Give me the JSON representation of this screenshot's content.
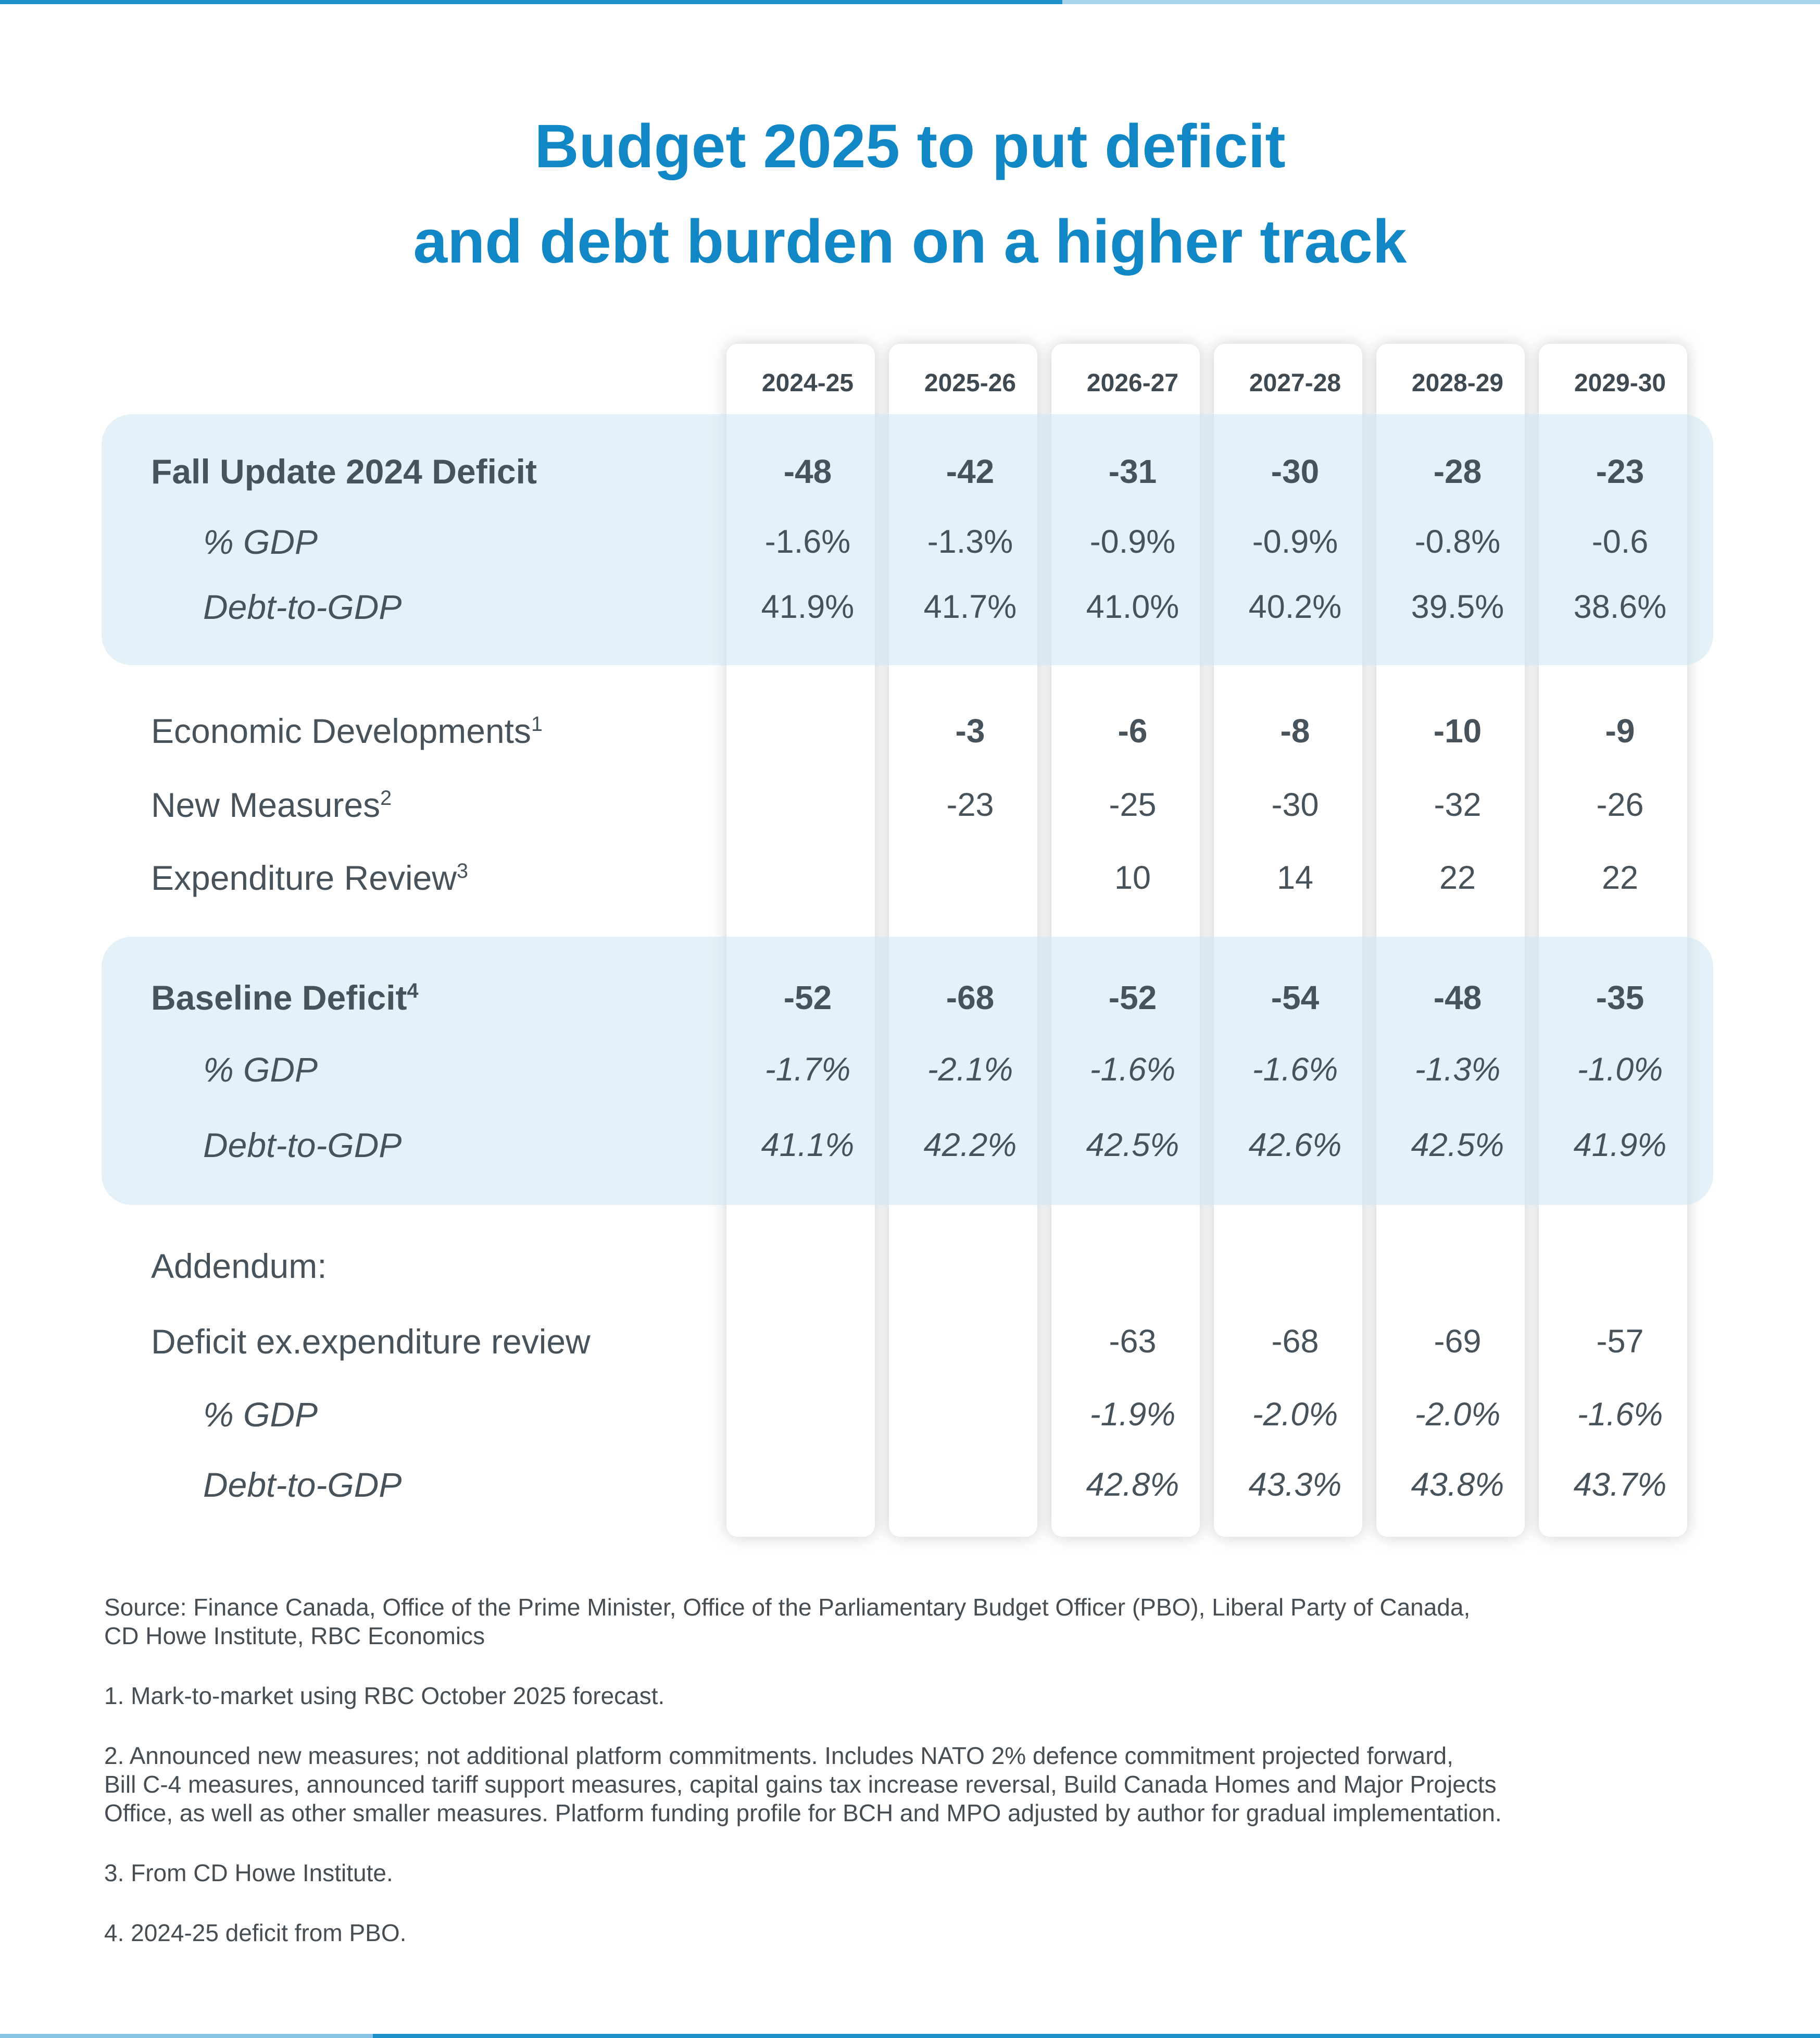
{
  "accent": {
    "title_blue": "#1287c6",
    "bar_dark_blue": "#1d8fc9",
    "bar_light_blue_top": "#a9d6ee",
    "bar_light_blue_bottom": "#86c5e6",
    "band_light_blue": "#e2f1f8",
    "text_slate": "#47525a"
  },
  "title": {
    "line1": "Budget 2025 to put deficit",
    "line2": "and debt burden on a higher track"
  },
  "table": {
    "col_headers": [
      "2024-25",
      "2025-26",
      "2026-27",
      "2027-28",
      "2028-29",
      "2029-30"
    ],
    "rows": [
      {
        "label": "Fall Update 2024 Deficit",
        "sup": "",
        "label_style": "bold",
        "indent": false,
        "value_style": "bold",
        "values": [
          "-48",
          "-42",
          "-31",
          "-30",
          "-28",
          "-23"
        ]
      },
      {
        "label": "% GDP",
        "sup": "",
        "label_style": "italic",
        "indent": true,
        "value_style": "reg",
        "values": [
          "-1.6%",
          "-1.3%",
          "-0.9%",
          "-0.9%",
          "-0.8%",
          "-0.6"
        ]
      },
      {
        "label": "Debt-to-GDP",
        "sup": "",
        "label_style": "italic",
        "indent": true,
        "value_style": "reg",
        "values": [
          "41.9%",
          "41.7%",
          "41.0%",
          "40.2%",
          "39.5%",
          "38.6%"
        ]
      },
      {
        "label": "Economic Developments",
        "sup": "1",
        "label_style": "reg",
        "indent": false,
        "value_style": "bold",
        "values": [
          "",
          "-3",
          "-6",
          "-8",
          "-10",
          "-9"
        ]
      },
      {
        "label": "New Measures",
        "sup": "2",
        "label_style": "reg",
        "indent": false,
        "value_style": "reg",
        "values": [
          "",
          "-23",
          "-25",
          "-30",
          "-32",
          "-26"
        ]
      },
      {
        "label": "Expenditure Review",
        "sup": "3",
        "label_style": "reg",
        "indent": false,
        "value_style": "reg",
        "values": [
          "",
          "",
          "10",
          "14",
          "22",
          "22"
        ]
      },
      {
        "label": "Baseline Deficit",
        "sup": "4",
        "label_style": "bold",
        "indent": false,
        "value_style": "bold",
        "values": [
          "-52",
          "-68",
          "-52",
          "-54",
          "-48",
          "-35"
        ]
      },
      {
        "label": "% GDP",
        "sup": "",
        "label_style": "italic",
        "indent": true,
        "value_style": "italic",
        "values": [
          "-1.7%",
          "-2.1%",
          "-1.6%",
          "-1.6%",
          "-1.3%",
          "-1.0%"
        ]
      },
      {
        "label": "Debt-to-GDP",
        "sup": "",
        "label_style": "italic",
        "indent": true,
        "value_style": "italic",
        "values": [
          "41.1%",
          "42.2%",
          "42.5%",
          "42.6%",
          "42.5%",
          "41.9%"
        ]
      },
      {
        "label": "Addendum:",
        "sup": "",
        "label_style": "reg",
        "indent": false,
        "value_style": "reg",
        "values": [
          "",
          "",
          "",
          "",
          "",
          ""
        ]
      },
      {
        "label": "Deficit ex.expenditure review",
        "sup": "",
        "label_style": "reg",
        "indent": false,
        "value_style": "reg",
        "values": [
          "",
          "",
          "-63",
          "-68",
          "-69",
          "-57"
        ]
      },
      {
        "label": "% GDP",
        "sup": "",
        "label_style": "italic",
        "indent": true,
        "value_style": "italic",
        "values": [
          "",
          "",
          "-1.9%",
          "-2.0%",
          "-2.0%",
          "-1.6%"
        ]
      },
      {
        "label": "Debt-to-GDP",
        "sup": "",
        "label_style": "italic",
        "indent": true,
        "value_style": "italic",
        "values": [
          "",
          "",
          "42.8%",
          "43.3%",
          "43.8%",
          "43.7%"
        ]
      }
    ]
  },
  "footnotes": {
    "paragraphs": [
      {
        "lines": [
          "Source: Finance Canada, Office of the Prime Minister, Office of the Parliamentary Budget Officer (PBO), Liberal Party of Canada,",
          "CD Howe Institute, RBC Economics"
        ]
      },
      {
        "lines": [
          "1. Mark-to-market using RBC October 2025 forecast."
        ]
      },
      {
        "lines": [
          "2. Announced new measures; not additional platform commitments. Includes NATO 2% defence commitment projected forward,",
          "Bill C-4 measures, announced tariff support measures, capital gains tax increase reversal, Build Canada Homes and Major Projects",
          "Office, as well as other smaller measures. Platform funding profile for BCH and MPO adjusted by  author for gradual implementation."
        ]
      },
      {
        "lines": [
          "3. From CD Howe Institute."
        ]
      },
      {
        "lines": [
          "4. 2024-25 deficit from PBO."
        ]
      }
    ]
  },
  "chart_data": {
    "type": "table",
    "title": "Budget 2025 to put deficit and debt burden on a higher track",
    "columns": [
      "2024-25",
      "2025-26",
      "2026-27",
      "2027-28",
      "2028-29",
      "2029-30"
    ],
    "rows": [
      {
        "name": "Fall Update 2024 Deficit",
        "values": [
          -48,
          -42,
          -31,
          -30,
          -28,
          -23
        ]
      },
      {
        "name": "Fall Update 2024 Deficit % GDP",
        "values": [
          -1.6,
          -1.3,
          -0.9,
          -0.9,
          -0.8,
          -0.6
        ]
      },
      {
        "name": "Fall Update 2024 Debt-to-GDP",
        "values": [
          41.9,
          41.7,
          41.0,
          40.2,
          39.5,
          38.6
        ]
      },
      {
        "name": "Economic Developments",
        "values": [
          null,
          -3,
          -6,
          -8,
          -10,
          -9
        ]
      },
      {
        "name": "New Measures",
        "values": [
          null,
          -23,
          -25,
          -30,
          -32,
          -26
        ]
      },
      {
        "name": "Expenditure Review",
        "values": [
          null,
          null,
          10,
          14,
          22,
          22
        ]
      },
      {
        "name": "Baseline Deficit",
        "values": [
          -52,
          -68,
          -52,
          -54,
          -48,
          -35
        ]
      },
      {
        "name": "Baseline Deficit % GDP",
        "values": [
          -1.7,
          -2.1,
          -1.6,
          -1.6,
          -1.3,
          -1.0
        ]
      },
      {
        "name": "Baseline Debt-to-GDP",
        "values": [
          41.1,
          42.2,
          42.5,
          42.6,
          42.5,
          41.9
        ]
      },
      {
        "name": "Deficit ex.expenditure review",
        "values": [
          null,
          null,
          -63,
          -68,
          -69,
          -57
        ]
      },
      {
        "name": "Deficit ex.expenditure review % GDP",
        "values": [
          null,
          null,
          -1.9,
          -2.0,
          -2.0,
          -1.6
        ]
      },
      {
        "name": "Deficit ex.expenditure review Debt-to-GDP",
        "values": [
          null,
          null,
          42.8,
          43.3,
          43.8,
          43.7
        ]
      }
    ]
  }
}
